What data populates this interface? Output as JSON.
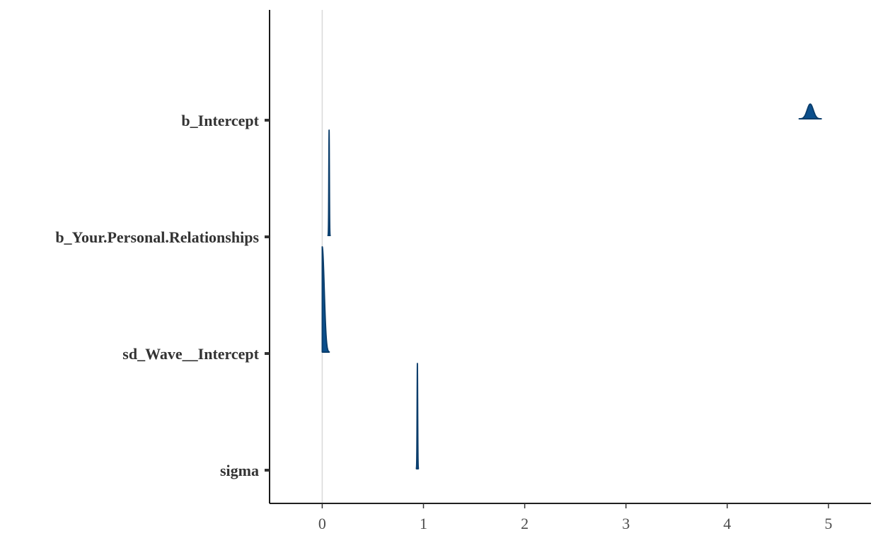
{
  "chart_data": {
    "type": "area",
    "title": "",
    "xlabel": "",
    "ylabel": "",
    "xlim": [
      -0.52,
      5.42
    ],
    "x_ticks": [
      0,
      1,
      2,
      3,
      4,
      5
    ],
    "x_tick_labels": [
      "0",
      "1",
      "2",
      "3",
      "4",
      "5"
    ],
    "reference_line_x": 0,
    "grid": false,
    "legend": "none",
    "colors": {
      "density_fill": "#0b4f8c",
      "density_outline": "#0b3d6b",
      "axis": "#000000",
      "reference_line": "#d9d9d9"
    },
    "parameters": [
      {
        "name": "b_Intercept",
        "mean": 4.82,
        "sd": 0.03,
        "lower": 4.71,
        "upper": 4.93,
        "shape": "gaussian"
      },
      {
        "name": "b_Your.Personal.Relationships",
        "mean": 0.068,
        "sd": 0.003,
        "lower": 0.056,
        "upper": 0.08,
        "shape": "gaussian"
      },
      {
        "name": "sd_Wave__Intercept",
        "mean": 0.02,
        "sd": 0.02,
        "lower": 0.0,
        "upper": 0.07,
        "shape": "half"
      },
      {
        "name": "sigma",
        "mean": 0.94,
        "sd": 0.003,
        "lower": 0.93,
        "upper": 0.95,
        "shape": "gaussian"
      }
    ]
  }
}
